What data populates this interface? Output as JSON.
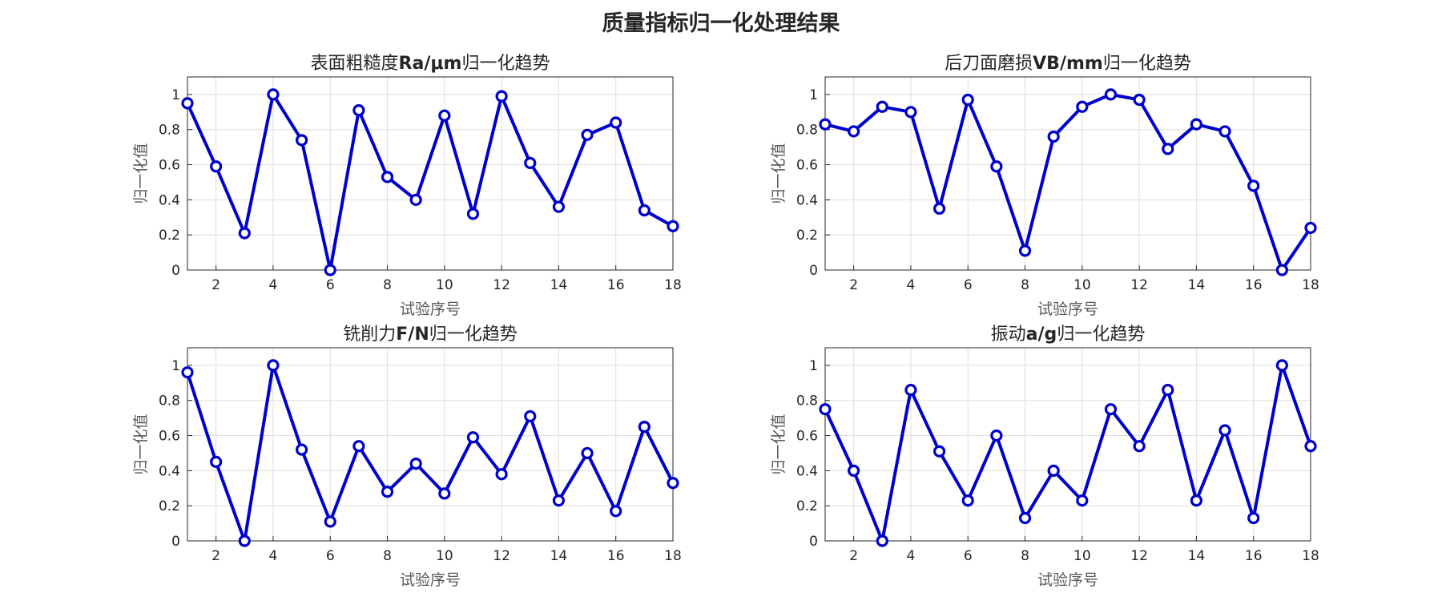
{
  "figure": {
    "title": "质量指标归一化处理结果",
    "series_color": "#0000CD"
  },
  "chart_data": [
    {
      "type": "line",
      "title_parts": [
        {
          "text": "表面粗糙度",
          "bold": false
        },
        {
          "text": "Ra/μm",
          "bold": true
        },
        {
          "text": "归一化趋势",
          "bold": false
        }
      ],
      "xlabel": "试验序号",
      "ylabel": "归一化值",
      "xlim": [
        1,
        18
      ],
      "ylim": [
        0,
        1.1
      ],
      "xticks": [
        2,
        4,
        6,
        8,
        10,
        12,
        14,
        16,
        18
      ],
      "yticks": [
        0,
        0.2,
        0.4,
        0.6,
        0.8,
        1
      ],
      "grid": true,
      "marker": "circle",
      "x": [
        1,
        2,
        3,
        4,
        5,
        6,
        7,
        8,
        9,
        10,
        11,
        12,
        13,
        14,
        15,
        16,
        17,
        18
      ],
      "values": [
        0.95,
        0.59,
        0.21,
        1.0,
        0.74,
        0.0,
        0.91,
        0.53,
        0.4,
        0.88,
        0.32,
        0.99,
        0.61,
        0.36,
        0.77,
        0.84,
        0.34,
        0.25
      ]
    },
    {
      "type": "line",
      "title_parts": [
        {
          "text": "后刀面磨损",
          "bold": false
        },
        {
          "text": "VB/mm",
          "bold": true
        },
        {
          "text": "归一化趋势",
          "bold": false
        }
      ],
      "xlabel": "试验序号",
      "ylabel": "归一化值",
      "xlim": [
        1,
        18
      ],
      "ylim": [
        0,
        1.1
      ],
      "xticks": [
        2,
        4,
        6,
        8,
        10,
        12,
        14,
        16,
        18
      ],
      "yticks": [
        0,
        0.2,
        0.4,
        0.6,
        0.8,
        1
      ],
      "grid": true,
      "marker": "circle",
      "x": [
        1,
        2,
        3,
        4,
        5,
        6,
        7,
        8,
        9,
        10,
        11,
        12,
        13,
        14,
        15,
        16,
        17,
        18
      ],
      "values": [
        0.83,
        0.79,
        0.93,
        0.9,
        0.35,
        0.97,
        0.59,
        0.11,
        0.76,
        0.93,
        1.0,
        0.97,
        0.69,
        0.83,
        0.79,
        0.48,
        0.0,
        0.24
      ]
    },
    {
      "type": "line",
      "title_parts": [
        {
          "text": "铣削力",
          "bold": false
        },
        {
          "text": "F/N",
          "bold": true
        },
        {
          "text": "归一化趋势",
          "bold": false
        }
      ],
      "xlabel": "试验序号",
      "ylabel": "归一化值",
      "xlim": [
        1,
        18
      ],
      "ylim": [
        0,
        1.1
      ],
      "xticks": [
        2,
        4,
        6,
        8,
        10,
        12,
        14,
        16,
        18
      ],
      "yticks": [
        0,
        0.2,
        0.4,
        0.6,
        0.8,
        1
      ],
      "grid": true,
      "marker": "circle",
      "x": [
        1,
        2,
        3,
        4,
        5,
        6,
        7,
        8,
        9,
        10,
        11,
        12,
        13,
        14,
        15,
        16,
        17,
        18
      ],
      "values": [
        0.96,
        0.45,
        0.0,
        1.0,
        0.52,
        0.11,
        0.54,
        0.28,
        0.44,
        0.27,
        0.59,
        0.38,
        0.71,
        0.23,
        0.5,
        0.17,
        0.65,
        0.33
      ]
    },
    {
      "type": "line",
      "title_parts": [
        {
          "text": "振动",
          "bold": false
        },
        {
          "text": "a/g",
          "bold": true
        },
        {
          "text": "归一化趋势",
          "bold": false
        }
      ],
      "xlabel": "试验序号",
      "ylabel": "归一化值",
      "xlim": [
        1,
        18
      ],
      "ylim": [
        0,
        1.1
      ],
      "xticks": [
        2,
        4,
        6,
        8,
        10,
        12,
        14,
        16,
        18
      ],
      "yticks": [
        0,
        0.2,
        0.4,
        0.6,
        0.8,
        1
      ],
      "grid": true,
      "marker": "circle",
      "x": [
        1,
        2,
        3,
        4,
        5,
        6,
        7,
        8,
        9,
        10,
        11,
        12,
        13,
        14,
        15,
        16,
        17,
        18
      ],
      "values": [
        0.75,
        0.4,
        0.0,
        0.86,
        0.51,
        0.23,
        0.6,
        0.13,
        0.4,
        0.23,
        0.75,
        0.54,
        0.86,
        0.23,
        0.63,
        0.13,
        1.0,
        0.54
      ]
    }
  ]
}
